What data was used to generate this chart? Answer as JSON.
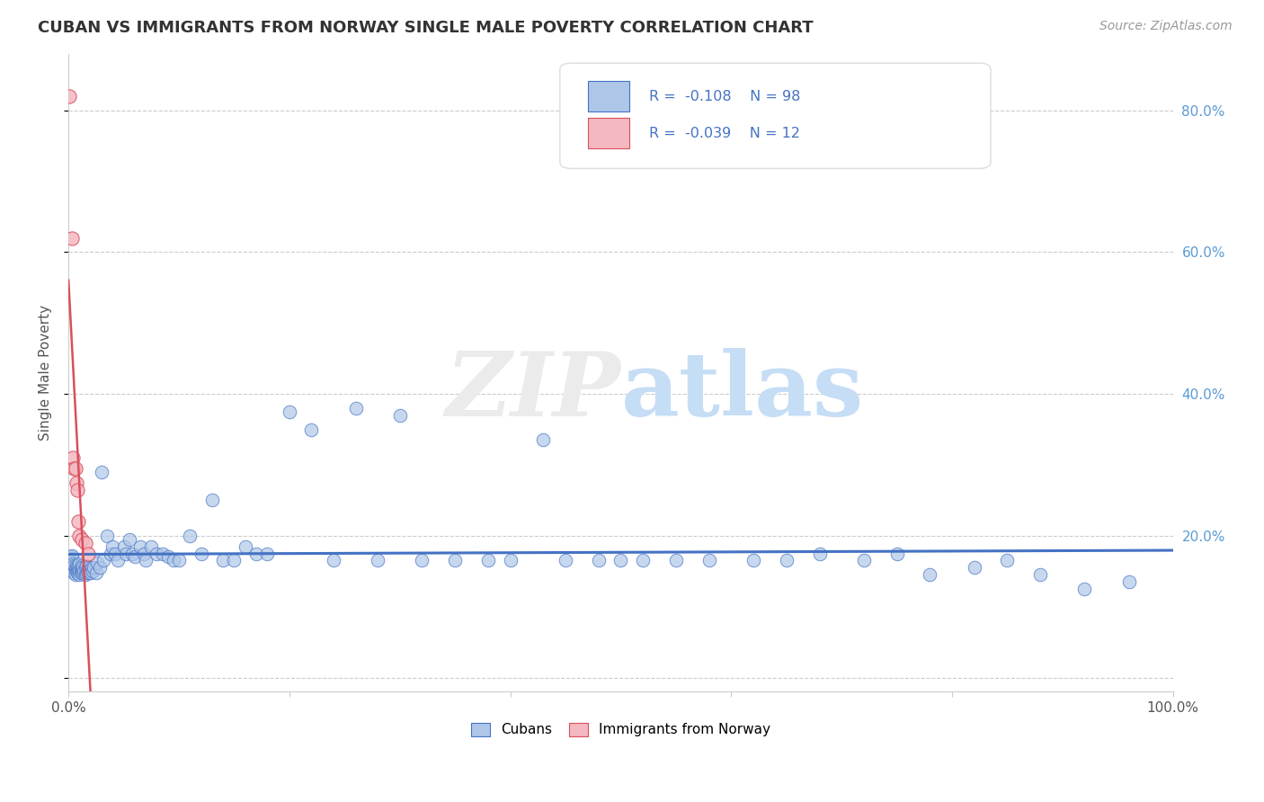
{
  "title": "CUBAN VS IMMIGRANTS FROM NORWAY SINGLE MALE POVERTY CORRELATION CHART",
  "source": "Source: ZipAtlas.com",
  "ylabel": "Single Male Poverty",
  "xlim": [
    0.0,
    1.0
  ],
  "ylim": [
    -0.02,
    0.88
  ],
  "x_ticks": [
    0.0,
    0.2,
    0.4,
    0.6,
    0.8,
    1.0
  ],
  "x_tick_labels": [
    "0.0%",
    "",
    "",
    "",
    "",
    "100.0%"
  ],
  "y_ticks": [
    0.0,
    0.2,
    0.4,
    0.6,
    0.8
  ],
  "y_tick_labels_right": [
    "",
    "20.0%",
    "40.0%",
    "60.0%",
    "80.0%"
  ],
  "cubans_R": -0.108,
  "cubans_N": 98,
  "norway_R": -0.039,
  "norway_N": 12,
  "cubans_color": "#aec6e8",
  "norway_color": "#f4b8c1",
  "trend_cuban_color": "#4472c4",
  "trend_norway_color": "#d94f5c",
  "trend_norway_dash_color": "#ccaabb",
  "legend_labels": [
    "Cubans",
    "Immigrants from Norway"
  ],
  "cubans_x": [
    0.001,
    0.002,
    0.003,
    0.003,
    0.004,
    0.004,
    0.005,
    0.005,
    0.006,
    0.006,
    0.007,
    0.007,
    0.008,
    0.008,
    0.009,
    0.009,
    0.01,
    0.01,
    0.01,
    0.011,
    0.011,
    0.012,
    0.012,
    0.013,
    0.013,
    0.014,
    0.015,
    0.015,
    0.016,
    0.016,
    0.017,
    0.018,
    0.018,
    0.019,
    0.02,
    0.021,
    0.022,
    0.023,
    0.025,
    0.026,
    0.028,
    0.03,
    0.032,
    0.035,
    0.038,
    0.04,
    0.042,
    0.045,
    0.05,
    0.052,
    0.055,
    0.058,
    0.06,
    0.065,
    0.068,
    0.07,
    0.075,
    0.08,
    0.085,
    0.09,
    0.095,
    0.1,
    0.11,
    0.12,
    0.13,
    0.14,
    0.15,
    0.16,
    0.17,
    0.18,
    0.2,
    0.22,
    0.24,
    0.26,
    0.28,
    0.3,
    0.32,
    0.35,
    0.38,
    0.4,
    0.43,
    0.45,
    0.48,
    0.5,
    0.52,
    0.55,
    0.58,
    0.62,
    0.65,
    0.68,
    0.72,
    0.75,
    0.78,
    0.82,
    0.85,
    0.88,
    0.92,
    0.96
  ],
  "cubans_y": [
    0.165,
    0.17,
    0.168,
    0.172,
    0.155,
    0.16,
    0.148,
    0.158,
    0.145,
    0.155,
    0.15,
    0.158,
    0.148,
    0.155,
    0.15,
    0.158,
    0.145,
    0.152,
    0.16,
    0.148,
    0.155,
    0.15,
    0.158,
    0.148,
    0.155,
    0.15,
    0.145,
    0.155,
    0.148,
    0.158,
    0.15,
    0.148,
    0.155,
    0.152,
    0.148,
    0.155,
    0.15,
    0.155,
    0.148,
    0.162,
    0.155,
    0.29,
    0.165,
    0.2,
    0.175,
    0.185,
    0.175,
    0.165,
    0.185,
    0.175,
    0.195,
    0.175,
    0.17,
    0.185,
    0.175,
    0.165,
    0.185,
    0.175,
    0.175,
    0.17,
    0.165,
    0.165,
    0.2,
    0.175,
    0.25,
    0.165,
    0.165,
    0.185,
    0.175,
    0.175,
    0.375,
    0.35,
    0.165,
    0.38,
    0.165,
    0.37,
    0.165,
    0.165,
    0.165,
    0.165,
    0.335,
    0.165,
    0.165,
    0.165,
    0.165,
    0.165,
    0.165,
    0.165,
    0.165,
    0.175,
    0.165,
    0.175,
    0.145,
    0.155,
    0.165,
    0.145,
    0.125,
    0.135
  ],
  "norway_x": [
    0.001,
    0.003,
    0.004,
    0.005,
    0.006,
    0.007,
    0.008,
    0.009,
    0.01,
    0.012,
    0.015,
    0.018
  ],
  "norway_y": [
    0.82,
    0.62,
    0.31,
    0.295,
    0.295,
    0.275,
    0.265,
    0.22,
    0.2,
    0.195,
    0.19,
    0.175
  ],
  "norway_trend_x_start": 0.0,
  "norway_trend_x_end": 0.09,
  "cuban_trend_x_start": 0.0,
  "cuban_trend_x_end": 1.0
}
